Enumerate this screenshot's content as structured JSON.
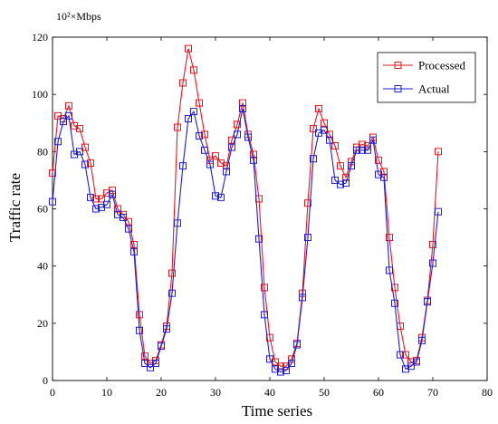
{
  "chart_data": {
    "type": "line",
    "title": "",
    "unit_label": "10²×Mbps",
    "xlabel": "Time series",
    "ylabel": "Traffic rate",
    "xlim": [
      0,
      80
    ],
    "ylim": [
      0,
      120
    ],
    "xticks": [
      "0",
      "10",
      "20",
      "30",
      "40",
      "50",
      "60",
      "70",
      "80"
    ],
    "yticks": [
      "0",
      "20",
      "40",
      "60",
      "80",
      "100",
      "120"
    ],
    "grid": false,
    "legend_position": "top-right",
    "series": [
      {
        "name": "Processed",
        "color": "#e8191e",
        "marker": "square",
        "x": [
          0,
          1,
          2,
          3,
          4,
          5,
          6,
          7,
          8,
          9,
          10,
          11,
          12,
          13,
          14,
          15,
          16,
          17,
          18,
          19,
          20,
          21,
          22,
          23,
          24,
          25,
          26,
          27,
          28,
          29,
          30,
          31,
          32,
          33,
          34,
          35,
          36,
          37,
          38,
          39,
          40,
          41,
          42,
          43,
          44,
          45,
          46,
          47,
          48,
          49,
          50,
          51,
          52,
          53,
          54,
          55,
          56,
          57,
          58,
          59,
          60,
          61,
          62,
          63,
          64,
          65,
          66,
          67,
          68,
          69,
          70,
          71
        ],
        "y": [
          72.5,
          92.5,
          91.5,
          96,
          89,
          88,
          81.5,
          76,
          63.5,
          63.5,
          65.5,
          66.5,
          60,
          58,
          55.5,
          47.5,
          23,
          8.5,
          6,
          7,
          12.5,
          19,
          37.5,
          88.5,
          104,
          116,
          108.5,
          97,
          86,
          77,
          78.5,
          76,
          75,
          84,
          89.5,
          97,
          86,
          79,
          63.5,
          32.5,
          15,
          6.5,
          5,
          5,
          7.5,
          13,
          30.5,
          62,
          88,
          95,
          90,
          86,
          82,
          75,
          71,
          76.5,
          81.5,
          82.5,
          82,
          85,
          77,
          73,
          50,
          32.5,
          19,
          9,
          6.5,
          7,
          15,
          28,
          47.5,
          80
        ]
      },
      {
        "name": "Actual",
        "color": "#1f1fd1",
        "marker": "square",
        "x": [
          0,
          1,
          2,
          3,
          4,
          5,
          6,
          7,
          8,
          9,
          10,
          11,
          12,
          13,
          14,
          15,
          16,
          17,
          18,
          19,
          20,
          21,
          22,
          23,
          24,
          25,
          26,
          27,
          28,
          29,
          30,
          31,
          32,
          33,
          34,
          35,
          36,
          37,
          38,
          39,
          40,
          41,
          42,
          43,
          44,
          45,
          46,
          47,
          48,
          49,
          50,
          51,
          52,
          53,
          54,
          55,
          56,
          57,
          58,
          59,
          60,
          61,
          62,
          63,
          64,
          65,
          66,
          67,
          68,
          69,
          70,
          71
        ],
        "y": [
          62.5,
          83.5,
          90.5,
          92.5,
          79,
          80,
          75.5,
          64,
          60,
          60.5,
          61.5,
          65,
          58,
          57,
          53,
          45,
          17.5,
          6,
          4.5,
          6,
          12,
          18,
          30.5,
          55,
          75,
          91.5,
          94,
          85.5,
          80.5,
          75.5,
          64.5,
          64,
          73,
          81.5,
          86,
          95,
          85,
          77,
          49.5,
          23,
          7.5,
          4,
          3,
          3.5,
          6,
          12.5,
          29,
          50,
          77.5,
          86.5,
          87.5,
          84,
          70,
          68.5,
          69,
          75,
          80.5,
          80.5,
          80.5,
          84,
          72,
          71,
          38.5,
          27,
          9,
          4,
          5,
          6.5,
          14,
          27.5,
          41,
          59
        ]
      }
    ]
  }
}
